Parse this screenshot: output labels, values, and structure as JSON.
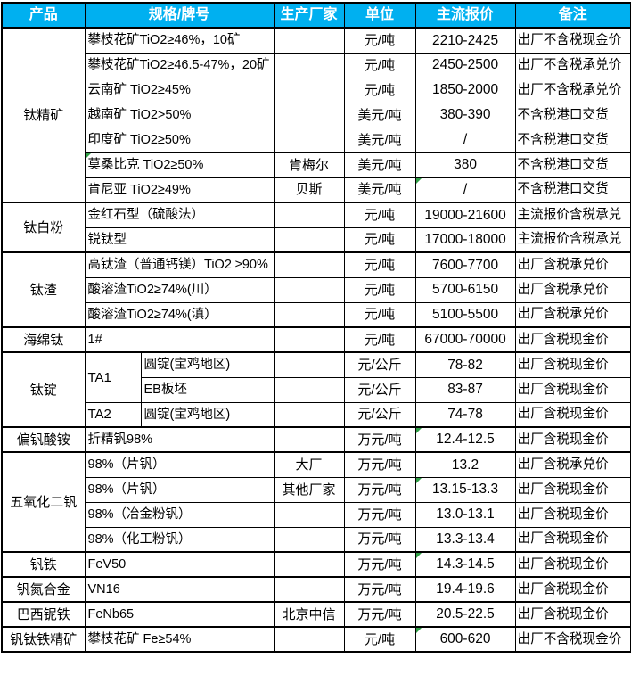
{
  "colors": {
    "header_bg": "#00b0f0",
    "header_text": "#ffffff",
    "border": "#000000",
    "flag_green": "#2e9e44"
  },
  "header": {
    "columns": [
      "产品",
      "规格/牌号",
      "生产厂家",
      "单位",
      "主流报价",
      "备注"
    ]
  },
  "groups": [
    {
      "product": "钛精矿",
      "rows": [
        {
          "spec": "攀枝花矿TiO2≥46%，10矿",
          "maker": "",
          "unit": "元/吨",
          "price": "2210-2425",
          "note": "出厂不含税现金价"
        },
        {
          "spec": "攀枝花矿TiO2≥46.5-47%，20矿",
          "maker": "",
          "unit": "元/吨",
          "price": "2450-2500",
          "note": "出厂不含税承兑价"
        },
        {
          "spec": "云南矿 TiO2≥45%",
          "maker": "",
          "unit": "元/吨",
          "price": "1850-2000",
          "note": "出厂不含税承兑价"
        },
        {
          "spec": "越南矿 TiO2>50%",
          "maker": "",
          "unit": "美元/吨",
          "price": "380-390",
          "note": "不含税港口交货"
        },
        {
          "spec": "印度矿 TiO2≥50%",
          "maker": "",
          "unit": "美元/吨",
          "price": "/",
          "note": "不含税港口交货"
        },
        {
          "spec": "莫桑比克 TiO2≥50%",
          "maker": "肯梅尔",
          "unit": "美元/吨",
          "price": "380",
          "note": "不含税港口交货",
          "flag_spec": true
        },
        {
          "spec": "肯尼亚 TiO2≥49%",
          "maker": "贝斯",
          "unit": "美元/吨",
          "price": "/",
          "note": "不含税港口交货",
          "flag_price": true
        }
      ]
    },
    {
      "product": "钛白粉",
      "rows": [
        {
          "spec": "金红石型（硫酸法）",
          "maker": "",
          "unit": "元/吨",
          "price": "19000-21600",
          "note": "主流报价含税承兑"
        },
        {
          "spec": "锐钛型",
          "maker": "",
          "unit": "元/吨",
          "price": "17000-18000",
          "note": "主流报价含税承兑"
        }
      ]
    },
    {
      "product": "钛渣",
      "rows": [
        {
          "spec": "高钛渣（普通钙镁）TiO2 ≥90%",
          "maker": "",
          "unit": "元/吨",
          "price": "7600-7700",
          "note": "出厂含税承兑价"
        },
        {
          "spec": "酸溶渣TiO2≥74%(川）",
          "maker": "",
          "unit": "元/吨",
          "price": "5700-6150",
          "note": "出厂含税承兑价"
        },
        {
          "spec": "酸溶渣TiO2≥74%(滇）",
          "maker": "",
          "unit": "元/吨",
          "price": "5100-5500",
          "note": "出厂含税承兑价"
        }
      ]
    },
    {
      "product": "海绵钛",
      "rows": [
        {
          "spec": "1#",
          "maker": "",
          "unit": "元/吨",
          "price": "67000-70000",
          "note": "出厂含税现金价"
        }
      ]
    },
    {
      "product": "钛锭",
      "rows": [
        {
          "grade": "TA1",
          "grade_rowspan": 2,
          "spec": "圆锭(宝鸡地区)",
          "maker": "",
          "unit": "元/公斤",
          "price": "78-82",
          "note": "出厂含税现金价"
        },
        {
          "grade_covered": true,
          "spec": "EB板坯",
          "maker": "",
          "unit": "元/公斤",
          "price": "83-87",
          "note": "出厂含税现金价"
        },
        {
          "grade": "TA2",
          "grade_rowspan": 1,
          "spec": "圆锭(宝鸡地区)",
          "maker": "",
          "unit": "元/公斤",
          "price": "74-78",
          "note": "出厂含税现金价"
        }
      ]
    },
    {
      "product": "偏钒酸铵",
      "rows": [
        {
          "spec": "折精钒98%",
          "maker": "",
          "unit": "万元/吨",
          "price": "12.4-12.5",
          "note": "出厂含税现金价",
          "flag_price": true
        }
      ]
    },
    {
      "product": "五氧化二钒",
      "rows": [
        {
          "spec": "98%（片钒）",
          "maker": "大厂",
          "unit": "万元/吨",
          "price": "13.2",
          "note": "出厂含税承兑价"
        },
        {
          "spec": "98%（片钒）",
          "maker": "其他厂家",
          "unit": "万元/吨",
          "price": "13.15-13.3",
          "note": "出厂含税现金价",
          "flag_price": true
        },
        {
          "spec": "98%（冶金粉钒）",
          "maker": "",
          "unit": "万元/吨",
          "price": "13.0-13.1",
          "note": "出厂含税现金价"
        },
        {
          "spec": "98%（化工粉钒）",
          "maker": "",
          "unit": "万元/吨",
          "price": "13.3-13.4",
          "note": "出厂含税现金价"
        }
      ]
    },
    {
      "product": "钒铁",
      "rows": [
        {
          "spec": "FeV50",
          "maker": "",
          "unit": "万元/吨",
          "price": "14.3-14.5",
          "note": "出厂含税现金价",
          "flag_price": true
        }
      ]
    },
    {
      "product": "钒氮合金",
      "rows": [
        {
          "spec": "VN16",
          "maker": "",
          "unit": "万元/吨",
          "price": "19.4-19.6",
          "note": "出厂含税现金价"
        }
      ]
    },
    {
      "product": "巴西铌铁",
      "rows": [
        {
          "spec": "FeNb65",
          "maker": "北京中信",
          "unit": "万元/吨",
          "price": "20.5-22.5",
          "note": "出厂含税现金价"
        }
      ]
    },
    {
      "product": "钒钛铁精矿",
      "rows": [
        {
          "spec": "攀枝花矿 Fe≥54%",
          "maker": "",
          "unit": "元/吨",
          "price": "600-620",
          "note": "出厂不含税现金价",
          "flag_price": true
        }
      ]
    }
  ]
}
